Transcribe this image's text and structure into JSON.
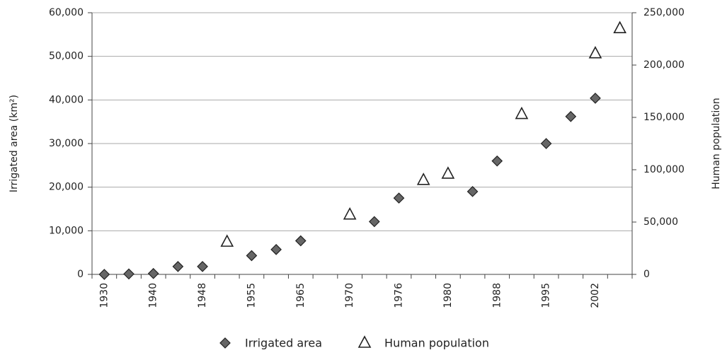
{
  "chart_data": {
    "type": "scatter",
    "categories": [
      "1930",
      null,
      "1940",
      null,
      "1948",
      null,
      "1955",
      null,
      "1965",
      null,
      "1970",
      null,
      "1976",
      null,
      "1980",
      null,
      "1988",
      null,
      "1995",
      null,
      "2002",
      null
    ],
    "y_label": "Irrigated area (km²)",
    "y2_label": "Human population",
    "ylim": [
      0,
      60000
    ],
    "yticks": [
      0,
      {
        "value": 10000,
        "label": "10,000"
      },
      {
        "value": 20000,
        "label": "20,000"
      },
      {
        "value": 30000,
        "label": "30,000"
      },
      {
        "value": 40000,
        "label": "40,000"
      },
      {
        "value": 50000,
        "label": "50,000"
      },
      {
        "value": 60000,
        "label": "60,000"
      }
    ],
    "y2lim": [
      0,
      250000
    ],
    "y2ticks": [
      0,
      {
        "value": 50000,
        "label": "50,000"
      },
      {
        "value": 100000,
        "label": "100,000"
      },
      {
        "value": 150000,
        "label": "150,000"
      },
      {
        "value": 200000,
        "label": "200,000"
      },
      {
        "value": 250000,
        "label": "250,000"
      }
    ],
    "grid": true,
    "legend": "bottom",
    "series": [
      {
        "name": "Irrigated area",
        "color": "#666666",
        "marker": "diamond",
        "values": [
          0,
          100,
          200,
          1800,
          1800,
          null,
          4300,
          5700,
          7700,
          null,
          null,
          12100,
          17500,
          null,
          null,
          19000,
          26000,
          null,
          30000,
          36200,
          40400,
          null
        ]
      },
      {
        "name": "Human population",
        "color": "#ffffff",
        "marker": "triangle",
        "axis": "y2",
        "values": [
          null,
          null,
          null,
          null,
          null,
          31000,
          null,
          null,
          null,
          null,
          57000,
          null,
          null,
          90000,
          96000,
          null,
          null,
          153000,
          null,
          null,
          211000,
          235000
        ]
      }
    ]
  }
}
